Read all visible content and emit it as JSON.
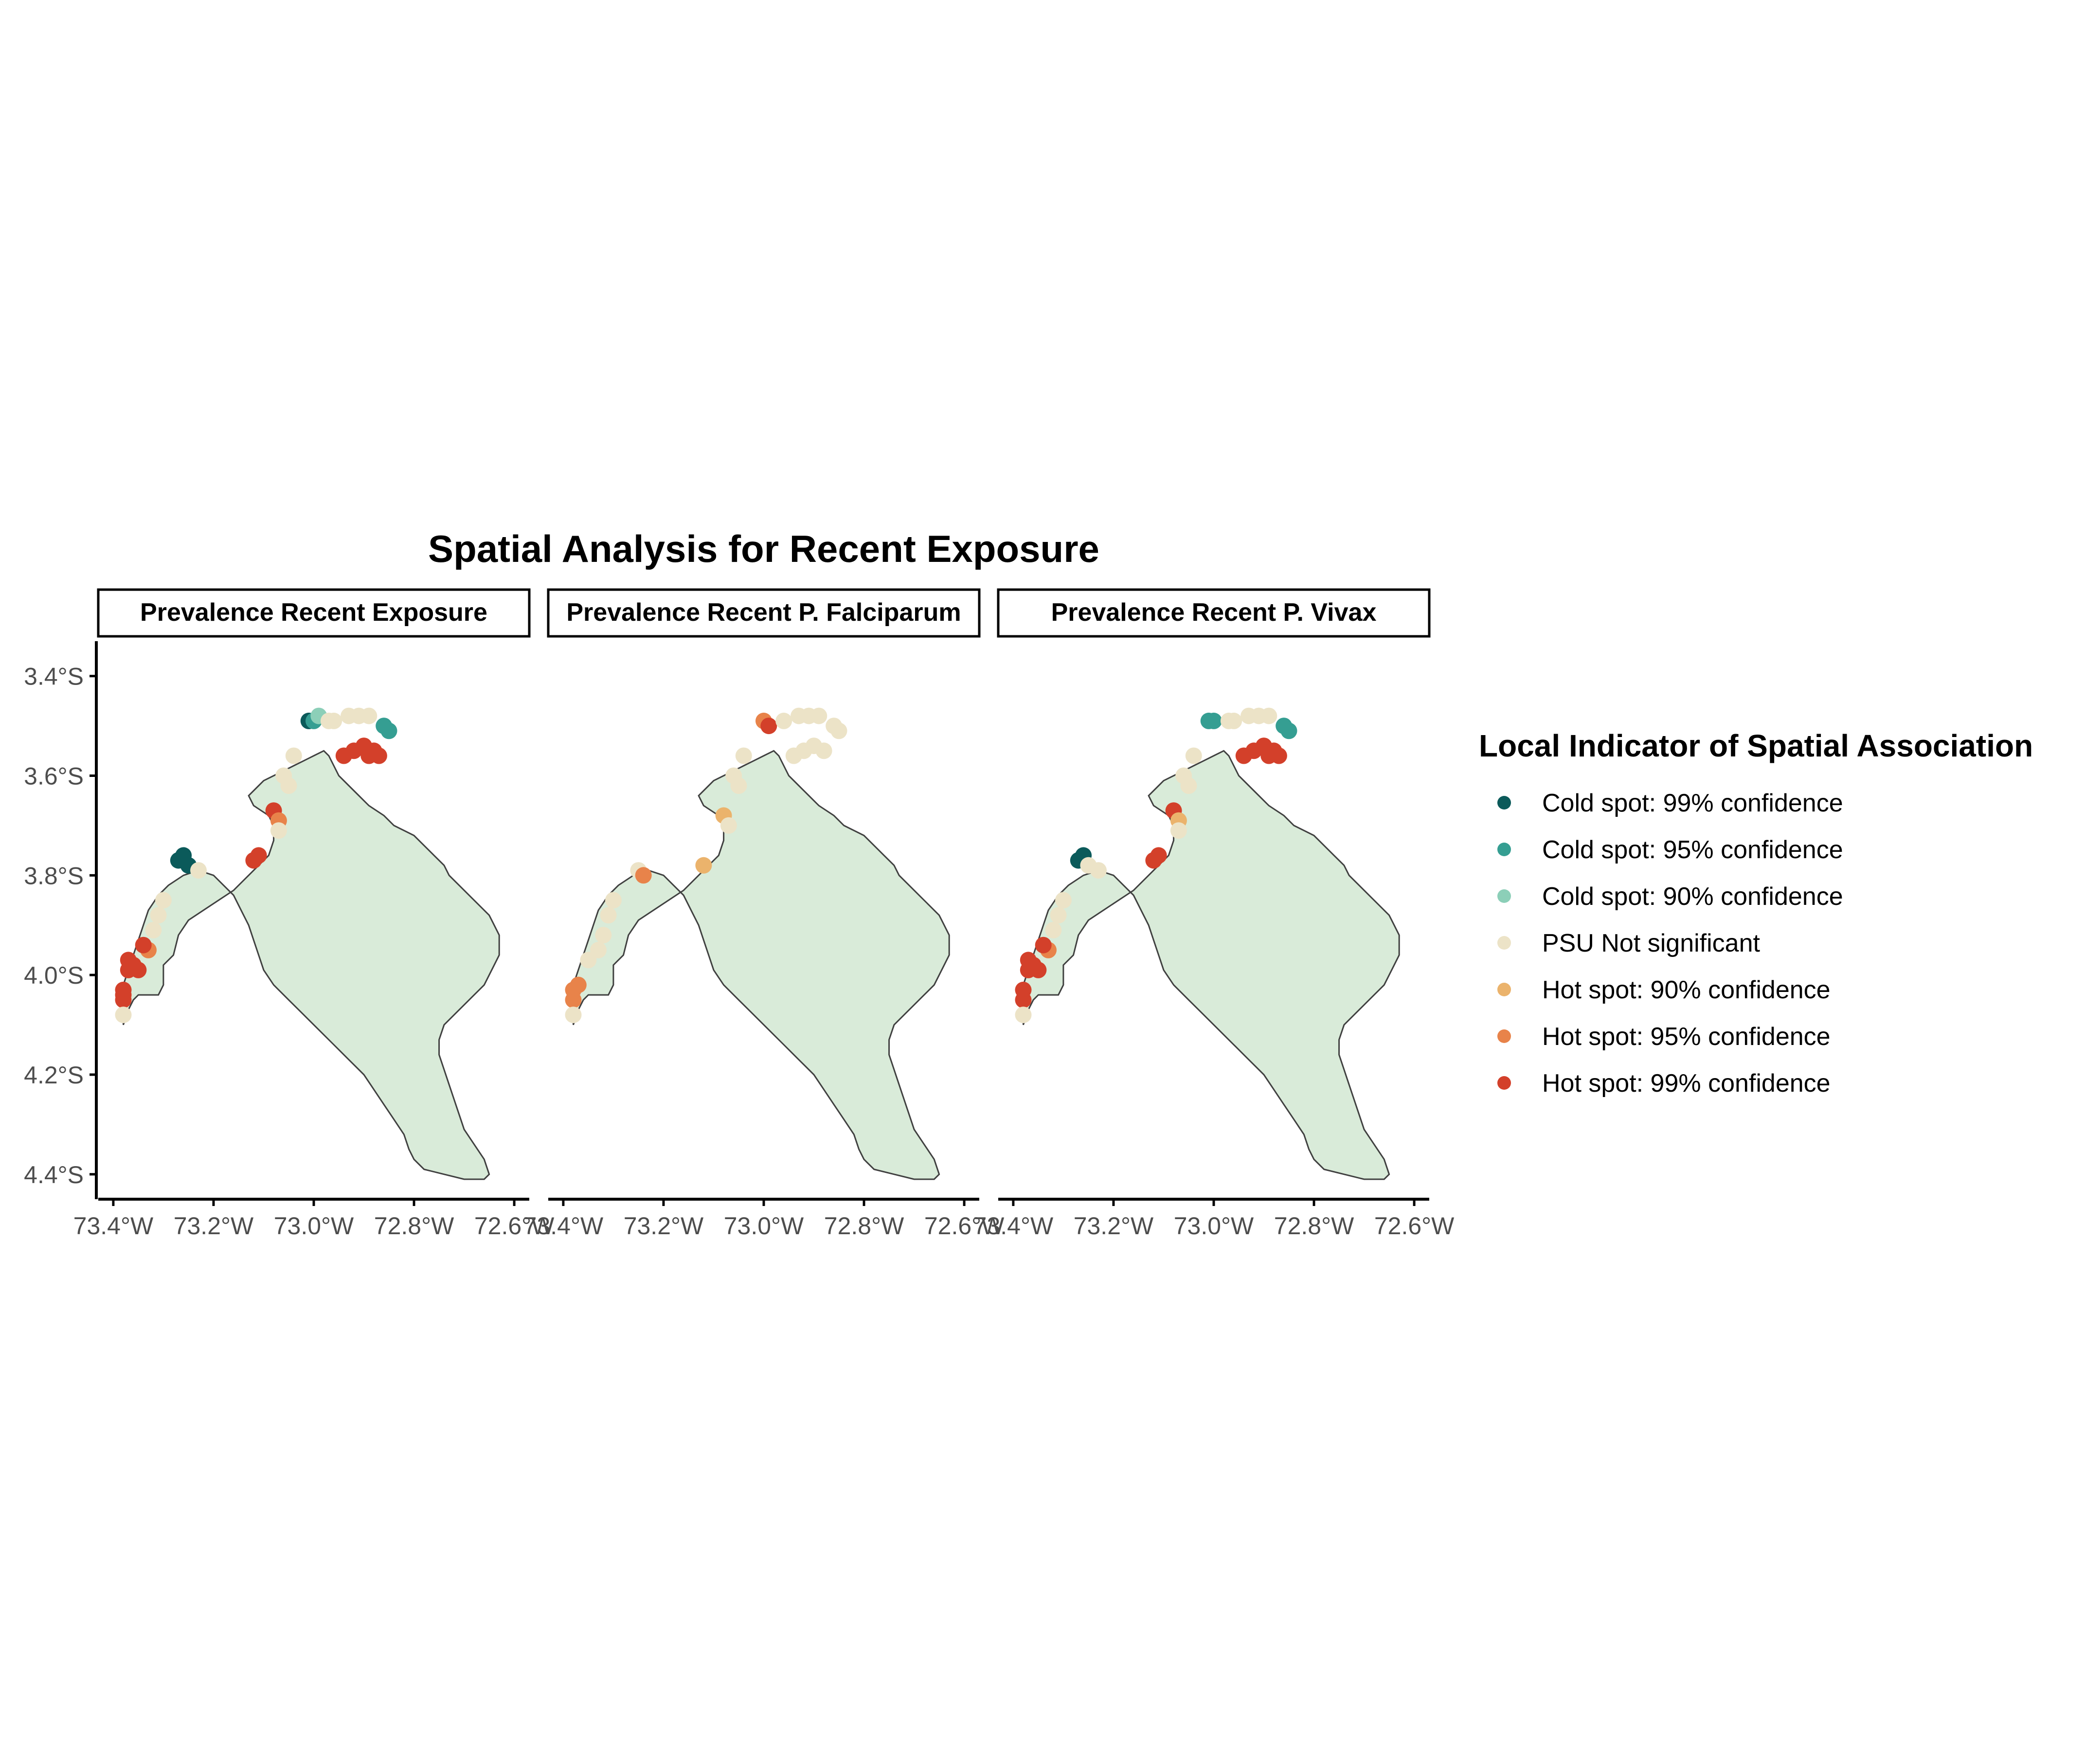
{
  "title": "Spatial Analysis for Recent Exposure",
  "panels": [
    {
      "strip": "Prevalence Recent Exposure"
    },
    {
      "strip": "Prevalence Recent P. Falciparum"
    },
    {
      "strip": "Prevalence Recent P. Vivax"
    }
  ],
  "axes": {
    "x_ticks": [
      "73.4°W",
      "73.2°W",
      "73.0°W",
      "72.8°W",
      "72.6°W"
    ],
    "x_values": [
      -73.4,
      -73.2,
      -73.0,
      -72.8,
      -72.6
    ],
    "y_ticks": [
      "3.4°S",
      "3.6°S",
      "3.8°S",
      "4.0°S",
      "4.2°S",
      "4.4°S"
    ],
    "y_values": [
      -3.4,
      -3.6,
      -3.8,
      -4.0,
      -4.2,
      -4.4
    ],
    "xlim": [
      -73.43,
      -72.57
    ],
    "ylim": [
      -4.45,
      -3.33
    ]
  },
  "legend": {
    "title": "Local Indicator of Spatial Association",
    "position": "right",
    "items": [
      {
        "key": "cold99",
        "label": "Cold spot: 99% confidence",
        "color": "#0b5a5a"
      },
      {
        "key": "cold95",
        "label": "Cold spot: 95% confidence",
        "color": "#359e92"
      },
      {
        "key": "cold90",
        "label": "Cold spot: 90% confidence",
        "color": "#8ccfb8"
      },
      {
        "key": "ns",
        "label": "PSU Not significant",
        "color": "#ece3c7"
      },
      {
        "key": "hot90",
        "label": "Hot spot: 90% confidence",
        "color": "#ebb36c"
      },
      {
        "key": "hot95",
        "label": "Hot spot: 95% confidence",
        "color": "#e8834a"
      },
      {
        "key": "hot99",
        "label": "Hot spot: 99% confidence",
        "color": "#d3402a"
      }
    ]
  },
  "colors": {
    "land_fill": "#d9ebd9",
    "land_outline": "#404040",
    "axis": "#000000",
    "tick_text": "#4d4d4d"
  },
  "map_data": {
    "region_outline": [
      [
        -73.38,
        -4.1
      ],
      [
        -73.37,
        -4.07
      ],
      [
        -73.36,
        -4.05
      ],
      [
        -73.35,
        -4.04
      ],
      [
        -73.33,
        -4.04
      ],
      [
        -73.31,
        -4.04
      ],
      [
        -73.3,
        -4.02
      ],
      [
        -73.3,
        -3.98
      ],
      [
        -73.28,
        -3.96
      ],
      [
        -73.27,
        -3.92
      ],
      [
        -73.25,
        -3.89
      ],
      [
        -73.22,
        -3.87
      ],
      [
        -73.19,
        -3.85
      ],
      [
        -73.16,
        -3.83
      ],
      [
        -73.13,
        -3.8
      ],
      [
        -73.11,
        -3.78
      ],
      [
        -73.09,
        -3.76
      ],
      [
        -73.08,
        -3.73
      ],
      [
        -73.08,
        -3.7
      ],
      [
        -73.09,
        -3.68
      ],
      [
        -73.12,
        -3.66
      ],
      [
        -73.13,
        -3.64
      ],
      [
        -73.11,
        -3.62
      ],
      [
        -73.1,
        -3.61
      ],
      [
        -73.08,
        -3.6
      ],
      [
        -73.06,
        -3.59
      ],
      [
        -73.04,
        -3.58
      ],
      [
        -73.02,
        -3.57
      ],
      [
        -73.0,
        -3.56
      ],
      [
        -72.98,
        -3.55
      ],
      [
        -72.97,
        -3.56
      ],
      [
        -72.96,
        -3.58
      ],
      [
        -72.95,
        -3.6
      ],
      [
        -72.93,
        -3.62
      ],
      [
        -72.91,
        -3.64
      ],
      [
        -72.89,
        -3.66
      ],
      [
        -72.86,
        -3.68
      ],
      [
        -72.84,
        -3.7
      ],
      [
        -72.8,
        -3.72
      ],
      [
        -72.78,
        -3.74
      ],
      [
        -72.76,
        -3.76
      ],
      [
        -72.74,
        -3.78
      ],
      [
        -72.73,
        -3.8
      ],
      [
        -72.71,
        -3.82
      ],
      [
        -72.69,
        -3.84
      ],
      [
        -72.67,
        -3.86
      ],
      [
        -72.65,
        -3.88
      ],
      [
        -72.64,
        -3.9
      ],
      [
        -72.63,
        -3.92
      ],
      [
        -72.63,
        -3.94
      ],
      [
        -72.63,
        -3.96
      ],
      [
        -72.64,
        -3.98
      ],
      [
        -72.65,
        -4.0
      ],
      [
        -72.66,
        -4.02
      ],
      [
        -72.68,
        -4.04
      ],
      [
        -72.7,
        -4.06
      ],
      [
        -72.72,
        -4.08
      ],
      [
        -72.74,
        -4.1
      ],
      [
        -72.75,
        -4.13
      ],
      [
        -72.75,
        -4.16
      ],
      [
        -72.74,
        -4.19
      ],
      [
        -72.73,
        -4.22
      ],
      [
        -72.72,
        -4.25
      ],
      [
        -72.71,
        -4.28
      ],
      [
        -72.7,
        -4.31
      ],
      [
        -72.68,
        -4.34
      ],
      [
        -72.66,
        -4.37
      ],
      [
        -72.65,
        -4.4
      ],
      [
        -72.66,
        -4.41
      ],
      [
        -72.7,
        -4.41
      ],
      [
        -72.74,
        -4.4
      ],
      [
        -72.78,
        -4.39
      ],
      [
        -72.8,
        -4.37
      ],
      [
        -72.81,
        -4.35
      ],
      [
        -72.82,
        -4.32
      ],
      [
        -72.84,
        -4.29
      ],
      [
        -72.86,
        -4.26
      ],
      [
        -72.88,
        -4.23
      ],
      [
        -72.9,
        -4.2
      ],
      [
        -72.93,
        -4.17
      ],
      [
        -72.96,
        -4.14
      ],
      [
        -72.99,
        -4.11
      ],
      [
        -73.02,
        -4.08
      ],
      [
        -73.05,
        -4.05
      ],
      [
        -73.08,
        -4.02
      ],
      [
        -73.1,
        -3.99
      ],
      [
        -73.11,
        -3.96
      ],
      [
        -73.12,
        -3.93
      ],
      [
        -73.13,
        -3.9
      ],
      [
        -73.14,
        -3.88
      ],
      [
        -73.15,
        -3.86
      ],
      [
        -73.16,
        -3.84
      ],
      [
        -73.18,
        -3.82
      ],
      [
        -73.2,
        -3.8
      ],
      [
        -73.23,
        -3.79
      ],
      [
        -73.26,
        -3.8
      ],
      [
        -73.29,
        -3.82
      ],
      [
        -73.31,
        -3.84
      ],
      [
        -73.33,
        -3.87
      ],
      [
        -73.34,
        -3.9
      ],
      [
        -73.35,
        -3.93
      ],
      [
        -73.36,
        -3.96
      ],
      [
        -73.37,
        -3.99
      ],
      [
        -73.38,
        -4.02
      ],
      [
        -73.38,
        -4.06
      ],
      [
        -73.38,
        -4.1
      ]
    ],
    "series": [
      {
        "panel": 0,
        "points": [
          [
            -73.27,
            -3.77,
            "cold99"
          ],
          [
            -73.26,
            -3.76,
            "cold99"
          ],
          [
            -73.25,
            -3.78,
            "cold99"
          ],
          [
            -73.01,
            -3.49,
            "cold99"
          ],
          [
            -73.0,
            -3.49,
            "cold95"
          ],
          [
            -72.99,
            -3.48,
            "cold90"
          ],
          [
            -72.86,
            -3.5,
            "cold95"
          ],
          [
            -72.85,
            -3.51,
            "cold95"
          ],
          [
            -72.93,
            -3.48,
            "ns"
          ],
          [
            -72.91,
            -3.48,
            "ns"
          ],
          [
            -72.89,
            -3.48,
            "ns"
          ],
          [
            -72.96,
            -3.49,
            "ns"
          ],
          [
            -72.97,
            -3.49,
            "ns"
          ],
          [
            -72.94,
            -3.56,
            "hot99"
          ],
          [
            -72.92,
            -3.55,
            "hot99"
          ],
          [
            -72.9,
            -3.54,
            "hot99"
          ],
          [
            -72.88,
            -3.55,
            "hot99"
          ],
          [
            -72.87,
            -3.56,
            "hot99"
          ],
          [
            -72.89,
            -3.56,
            "hot99"
          ],
          [
            -73.08,
            -3.67,
            "hot99"
          ],
          [
            -73.07,
            -3.69,
            "hot95"
          ],
          [
            -73.12,
            -3.77,
            "hot99"
          ],
          [
            -73.11,
            -3.76,
            "hot99"
          ],
          [
            -73.04,
            -3.56,
            "ns"
          ],
          [
            -73.06,
            -3.6,
            "ns"
          ],
          [
            -73.05,
            -3.62,
            "ns"
          ],
          [
            -73.07,
            -3.71,
            "ns"
          ],
          [
            -73.23,
            -3.79,
            "ns"
          ],
          [
            -73.3,
            -3.85,
            "ns"
          ],
          [
            -73.31,
            -3.88,
            "ns"
          ],
          [
            -73.32,
            -3.91,
            "ns"
          ],
          [
            -73.33,
            -3.95,
            "hot95"
          ],
          [
            -73.34,
            -3.94,
            "hot99"
          ],
          [
            -73.36,
            -3.98,
            "hot99"
          ],
          [
            -73.37,
            -3.99,
            "hot99"
          ],
          [
            -73.35,
            -3.99,
            "hot99"
          ],
          [
            -73.37,
            -3.97,
            "hot99"
          ],
          [
            -73.38,
            -4.03,
            "hot99"
          ],
          [
            -73.38,
            -4.05,
            "hot99"
          ],
          [
            -73.38,
            -4.04,
            "hot99"
          ],
          [
            -73.38,
            -4.08,
            "ns"
          ]
        ]
      },
      {
        "panel": 1,
        "points": [
          [
            -73.0,
            -3.49,
            "hot95"
          ],
          [
            -72.99,
            -3.5,
            "hot99"
          ],
          [
            -72.93,
            -3.48,
            "ns"
          ],
          [
            -72.91,
            -3.48,
            "ns"
          ],
          [
            -72.89,
            -3.48,
            "ns"
          ],
          [
            -72.96,
            -3.49,
            "ns"
          ],
          [
            -72.86,
            -3.5,
            "ns"
          ],
          [
            -72.85,
            -3.51,
            "ns"
          ],
          [
            -72.94,
            -3.56,
            "ns"
          ],
          [
            -72.92,
            -3.55,
            "ns"
          ],
          [
            -72.9,
            -3.54,
            "ns"
          ],
          [
            -72.88,
            -3.55,
            "ns"
          ],
          [
            -73.04,
            -3.56,
            "ns"
          ],
          [
            -73.06,
            -3.6,
            "ns"
          ],
          [
            -73.05,
            -3.62,
            "ns"
          ],
          [
            -73.08,
            -3.68,
            "hot90"
          ],
          [
            -73.07,
            -3.7,
            "ns"
          ],
          [
            -73.12,
            -3.78,
            "hot90"
          ],
          [
            -73.25,
            -3.79,
            "ns"
          ],
          [
            -73.24,
            -3.8,
            "hot95"
          ],
          [
            -73.3,
            -3.85,
            "ns"
          ],
          [
            -73.31,
            -3.88,
            "ns"
          ],
          [
            -73.32,
            -3.92,
            "ns"
          ],
          [
            -73.33,
            -3.95,
            "ns"
          ],
          [
            -73.35,
            -3.97,
            "ns"
          ],
          [
            -73.38,
            -4.03,
            "hot95"
          ],
          [
            -73.38,
            -4.05,
            "hot95"
          ],
          [
            -73.37,
            -4.02,
            "hot95"
          ],
          [
            -73.38,
            -4.08,
            "ns"
          ]
        ]
      },
      {
        "panel": 2,
        "points": [
          [
            -73.27,
            -3.77,
            "cold99"
          ],
          [
            -73.26,
            -3.76,
            "cold99"
          ],
          [
            -73.25,
            -3.78,
            "ns"
          ],
          [
            -73.01,
            -3.49,
            "cold95"
          ],
          [
            -73.0,
            -3.49,
            "cold95"
          ],
          [
            -72.86,
            -3.5,
            "cold95"
          ],
          [
            -72.85,
            -3.51,
            "cold95"
          ],
          [
            -72.93,
            -3.48,
            "ns"
          ],
          [
            -72.91,
            -3.48,
            "ns"
          ],
          [
            -72.89,
            -3.48,
            "ns"
          ],
          [
            -72.96,
            -3.49,
            "ns"
          ],
          [
            -72.97,
            -3.49,
            "ns"
          ],
          [
            -72.94,
            -3.56,
            "hot99"
          ],
          [
            -72.92,
            -3.55,
            "hot99"
          ],
          [
            -72.9,
            -3.54,
            "hot99"
          ],
          [
            -72.88,
            -3.55,
            "hot99"
          ],
          [
            -72.87,
            -3.56,
            "hot99"
          ],
          [
            -72.89,
            -3.56,
            "hot99"
          ],
          [
            -73.08,
            -3.67,
            "hot99"
          ],
          [
            -73.07,
            -3.69,
            "hot90"
          ],
          [
            -73.12,
            -3.77,
            "hot99"
          ],
          [
            -73.11,
            -3.76,
            "hot99"
          ],
          [
            -73.04,
            -3.56,
            "ns"
          ],
          [
            -73.06,
            -3.6,
            "ns"
          ],
          [
            -73.05,
            -3.62,
            "ns"
          ],
          [
            -73.07,
            -3.71,
            "ns"
          ],
          [
            -73.23,
            -3.79,
            "ns"
          ],
          [
            -73.3,
            -3.85,
            "ns"
          ],
          [
            -73.31,
            -3.88,
            "ns"
          ],
          [
            -73.32,
            -3.91,
            "ns"
          ],
          [
            -73.33,
            -3.95,
            "hot95"
          ],
          [
            -73.34,
            -3.94,
            "hot99"
          ],
          [
            -73.36,
            -3.98,
            "hot99"
          ],
          [
            -73.37,
            -3.99,
            "hot99"
          ],
          [
            -73.35,
            -3.99,
            "hot99"
          ],
          [
            -73.37,
            -3.97,
            "hot99"
          ],
          [
            -73.38,
            -4.03,
            "hot99"
          ],
          [
            -73.38,
            -4.05,
            "hot99"
          ],
          [
            -73.38,
            -4.08,
            "ns"
          ]
        ]
      }
    ]
  }
}
